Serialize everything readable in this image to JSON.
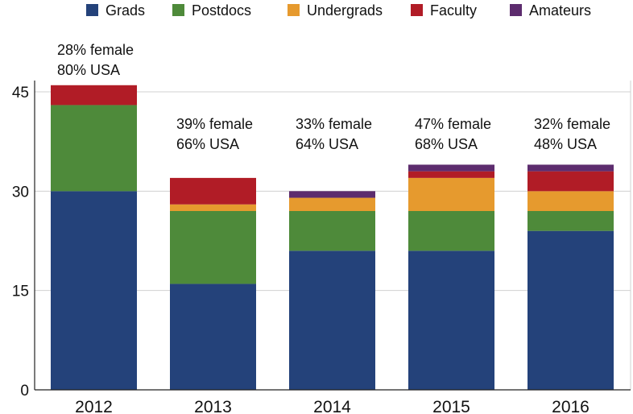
{
  "chart_data": {
    "type": "bar",
    "stacked": true,
    "title": "",
    "xlabel": "",
    "ylabel": "",
    "categories": [
      "2012",
      "2013",
      "2014",
      "2015",
      "2016"
    ],
    "ylim": [
      0,
      46
    ],
    "yticks": [
      0,
      15,
      30,
      45
    ],
    "grid": "horizontal",
    "legend_position": "top",
    "series": [
      {
        "name": "Grads",
        "color": "#24427a",
        "values": [
          30,
          16,
          21,
          21,
          24
        ]
      },
      {
        "name": "Postdocs",
        "color": "#4e8a3a",
        "values": [
          13,
          11,
          6,
          6,
          3
        ]
      },
      {
        "name": "Undergrads",
        "color": "#e69a2e",
        "values": [
          0,
          1,
          2,
          5,
          3
        ]
      },
      {
        "name": "Faculty",
        "color": "#b11c26",
        "values": [
          3,
          4,
          0,
          1,
          3
        ]
      },
      {
        "name": "Amateurs",
        "color": "#5d2c6e",
        "values": [
          0,
          0,
          1,
          1,
          1
        ]
      }
    ],
    "annotations": [
      {
        "category": "2012",
        "lines": [
          "28% female",
          "80% USA"
        ]
      },
      {
        "category": "2013",
        "lines": [
          "39% female",
          "66% USA"
        ]
      },
      {
        "category": "2014",
        "lines": [
          "33% female",
          "64% USA"
        ]
      },
      {
        "category": "2015",
        "lines": [
          "47% female",
          "68% USA"
        ]
      },
      {
        "category": "2016",
        "lines": [
          "32% female",
          "48% USA"
        ]
      }
    ]
  }
}
